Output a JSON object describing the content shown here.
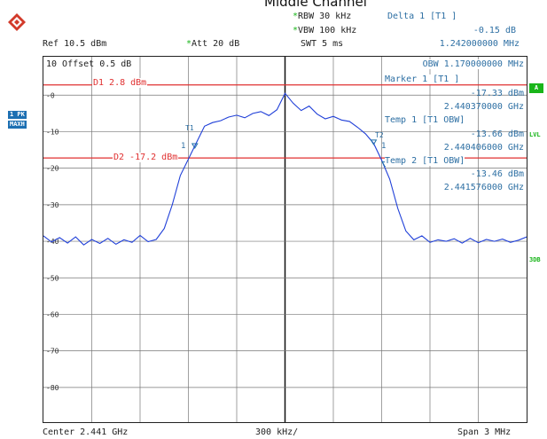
{
  "title": "Middle Channel",
  "settings": {
    "rbw": "RBW 30 kHz",
    "vbw": "VBW 100 kHz",
    "swt": "SWT 5 ms",
    "ref": "Ref  10.5 dBm",
    "att": "Att  20 dB",
    "delta_label": "Delta 1 [T1 ]",
    "delta_value": "-0.15 dB",
    "delta_freq": "1.242000000 MHz",
    "offset": "10  Offset  0.5 dB"
  },
  "marker_info": {
    "obw": "OBW  1.170000000 MHz",
    "marker": "Marker  1 [T1 ]",
    "marker_level": "-17.33 dBm",
    "marker_freq": "2.440370000 GHz",
    "temp1": "Temp 1 [T1 OBW]",
    "temp1_level": "-13.66 dBm",
    "temp1_freq": "2.440406000 GHz",
    "temp2": "Temp 2 [T1 OBW]",
    "temp2_level": "-13.46 dBm",
    "temp2_freq": "2.441576000 GHz"
  },
  "side_badges": {
    "pk": "1 PK",
    "maxh": "MAXH",
    "a": "A",
    "lvl": "LVL",
    "db3": "3DB"
  },
  "lines": {
    "d1": "D1 2.8 dBm",
    "d2": "D2 -17.2 dBm"
  },
  "marker_labels": {
    "t1": "T1",
    "m1": "1",
    "t2": "T2",
    "m2": "1"
  },
  "footer": {
    "center": "Center 2.441 GHz",
    "div": "300 kHz/",
    "span": "Span 3 MHz"
  },
  "colors": {
    "trace": "#1f3fd8",
    "lines": "#e03030",
    "grid": "#777777",
    "annotation": "#2d6fa3"
  },
  "chart_data": {
    "type": "line",
    "title": "Middle Channel",
    "xlabel": "",
    "ylabel": "",
    "ylim": [
      -89.5,
      10.5
    ],
    "y_ticks": [
      0,
      -10,
      -20,
      -30,
      -40,
      -50,
      -60,
      -70,
      -80
    ],
    "y_tick_labels": [
      "-0",
      "-10",
      "-20",
      "-30",
      "-40",
      "-50",
      "-60",
      "-70",
      "-80"
    ],
    "x_unit": "MHz offset from center",
    "xlim": [
      -1.5,
      1.5
    ],
    "reference_lines": [
      {
        "name": "D1",
        "value": 2.8
      },
      {
        "name": "D2",
        "value": -17.2
      }
    ],
    "series": [
      {
        "values": [
          [
            -1.5,
            -38.5
          ],
          [
            -1.45,
            -40.2
          ],
          [
            -1.4,
            -39.0
          ],
          [
            -1.35,
            -40.5
          ],
          [
            -1.3,
            -38.8
          ],
          [
            -1.25,
            -41.0
          ],
          [
            -1.2,
            -39.5
          ],
          [
            -1.15,
            -40.6
          ],
          [
            -1.1,
            -39.2
          ],
          [
            -1.05,
            -40.8
          ],
          [
            -1.0,
            -39.6
          ],
          [
            -0.95,
            -40.3
          ],
          [
            -0.9,
            -38.4
          ],
          [
            -0.85,
            -40.1
          ],
          [
            -0.8,
            -39.5
          ],
          [
            -0.75,
            -36.5
          ],
          [
            -0.7,
            -30.0
          ],
          [
            -0.65,
            -22.0
          ],
          [
            -0.6,
            -17.5
          ],
          [
            -0.55,
            -13.0
          ],
          [
            -0.5,
            -8.5
          ],
          [
            -0.45,
            -7.5
          ],
          [
            -0.4,
            -7.0
          ],
          [
            -0.35,
            -6.0
          ],
          [
            -0.3,
            -5.5
          ],
          [
            -0.25,
            -6.2
          ],
          [
            -0.2,
            -5.0
          ],
          [
            -0.15,
            -4.5
          ],
          [
            -0.1,
            -5.6
          ],
          [
            -0.05,
            -4.0
          ],
          [
            0.0,
            0.5
          ],
          [
            0.05,
            -2.2
          ],
          [
            0.1,
            -4.2
          ],
          [
            0.15,
            -3.0
          ],
          [
            0.2,
            -5.2
          ],
          [
            0.25,
            -6.5
          ],
          [
            0.3,
            -5.8
          ],
          [
            0.35,
            -6.8
          ],
          [
            0.4,
            -7.2
          ],
          [
            0.45,
            -8.8
          ],
          [
            0.5,
            -10.6
          ],
          [
            0.55,
            -13.2
          ],
          [
            0.6,
            -17.8
          ],
          [
            0.65,
            -23.0
          ],
          [
            0.7,
            -31.0
          ],
          [
            0.75,
            -37.2
          ],
          [
            0.8,
            -39.6
          ],
          [
            0.85,
            -38.5
          ],
          [
            0.9,
            -40.3
          ],
          [
            0.95,
            -39.6
          ],
          [
            1.0,
            -40.0
          ],
          [
            1.05,
            -39.3
          ],
          [
            1.1,
            -40.5
          ],
          [
            1.15,
            -39.2
          ],
          [
            1.2,
            -40.4
          ],
          [
            1.25,
            -39.5
          ],
          [
            1.3,
            -40.0
          ],
          [
            1.35,
            -39.4
          ],
          [
            1.4,
            -40.3
          ],
          [
            1.45,
            -39.7
          ],
          [
            1.5,
            -38.8
          ]
        ]
      }
    ]
  }
}
